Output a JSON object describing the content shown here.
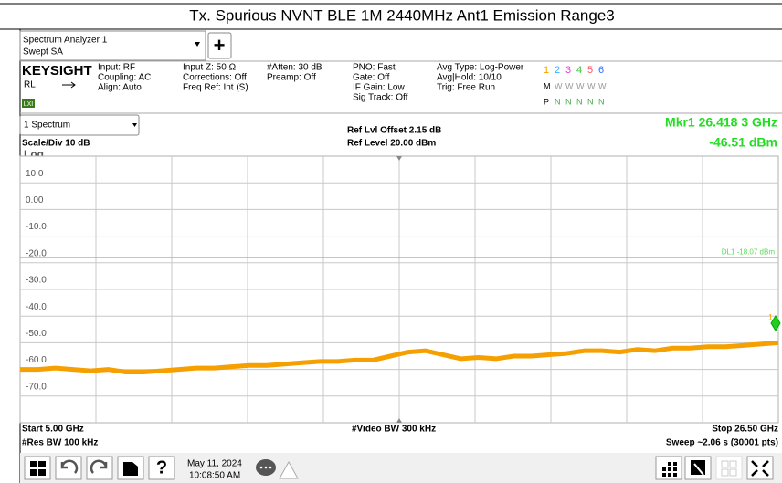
{
  "header": {
    "title": "Tx. Spurious NVNT BLE 1M 2440MHz Ant1 Emission Range3"
  },
  "window": {
    "name": "Spectrum Analyzer 1",
    "mode": "Swept SA",
    "add_button": "+"
  },
  "info": {
    "brand": "KEYSIGHT",
    "rl": "RL",
    "lxi": "LXI",
    "col1": [
      "Input: RF",
      "Coupling: AC",
      "Align: Auto"
    ],
    "col2": [
      "Input Z: 50 Ω",
      "Corrections: Off",
      "Freq Ref: Int (S)"
    ],
    "col3": [
      "#Atten: 30 dB",
      "Preamp: Off"
    ],
    "col4": [
      "PNO: Fast",
      "Gate: Off",
      "IF Gain: Low",
      "Sig Track: Off"
    ],
    "col5": [
      "Avg Type: Log-Power",
      "Avg|Hold: 10/10",
      "Trig: Free Run"
    ],
    "traces": [
      "1",
      "2",
      "3",
      "4",
      "5",
      "6"
    ],
    "trace_modes": [
      "M",
      "W",
      "W",
      "W",
      "W",
      "W"
    ],
    "trace_det": [
      "P",
      "N",
      "N",
      "N",
      "N",
      "N"
    ]
  },
  "view": {
    "name": "1 Spectrum",
    "ref_offset": "Ref Lvl Offset 2.15 dB",
    "ref_level": "Ref Level 20.00 dBm",
    "scale": "Scale/Div 10 dB",
    "log": "Log",
    "marker_freq": "Mkr1  26.418 3 GHz",
    "marker_level": "-46.51 dBm",
    "marker_id": "1"
  },
  "chart_data": {
    "type": "line",
    "xlim": [
      5,
      26.5
    ],
    "ylim": [
      -80,
      20
    ],
    "yticks": [
      {
        "value": 10,
        "label": "10.0"
      },
      {
        "value": 0,
        "label": "0.00"
      },
      {
        "value": -10,
        "label": "-10.0"
      },
      {
        "value": -20,
        "label": "-20.0"
      },
      {
        "value": -30,
        "label": "-30.0"
      },
      {
        "value": -40,
        "label": "-40.0"
      },
      {
        "value": -50,
        "label": "-50.0"
      },
      {
        "value": -60,
        "label": "-60.0"
      },
      {
        "value": -70,
        "label": "-70.0"
      }
    ],
    "display_line": {
      "value": -18.07,
      "label": "DL1 -18.07 dBm",
      "color": "#5ad85a"
    },
    "series": [
      {
        "name": "Trace 1",
        "color": "#f5a000",
        "x": [
          5,
          5.5,
          6,
          6.5,
          7,
          7.5,
          8,
          8.5,
          9,
          9.5,
          10,
          10.5,
          11,
          11.5,
          12,
          12.5,
          13,
          13.5,
          14,
          14.5,
          15,
          15.5,
          16,
          16.5,
          17,
          17.5,
          18,
          18.5,
          19,
          19.5,
          20,
          20.5,
          21,
          21.5,
          22,
          22.5,
          23,
          23.5,
          24,
          24.5,
          25,
          25.5,
          26,
          26.5
        ],
        "values": [
          -60,
          -60,
          -59.5,
          -60,
          -60.5,
          -60,
          -61,
          -61,
          -60.5,
          -60,
          -59.5,
          -59.5,
          -59,
          -58.5,
          -58.5,
          -58,
          -57.5,
          -57,
          -57,
          -56.5,
          -56.5,
          -55,
          -53.5,
          -53,
          -54.5,
          -56,
          -55.5,
          -56,
          -55,
          -55,
          -54.5,
          -54,
          -53,
          -53,
          -53.5,
          -52.5,
          -53,
          -52,
          -52,
          -51.5,
          -51.5,
          -51,
          -50.5,
          -50
        ]
      }
    ]
  },
  "footer": {
    "start": "Start 5.00 GHz",
    "rbw": "#Res BW 100 kHz",
    "vbw": "#Video BW 300 kHz",
    "stop": "Stop 26.50 GHz",
    "sweep": "Sweep ~2.06 s (30001 pts)"
  },
  "taskbar": {
    "date": "May 11, 2024",
    "time": "10:08:50 AM"
  }
}
